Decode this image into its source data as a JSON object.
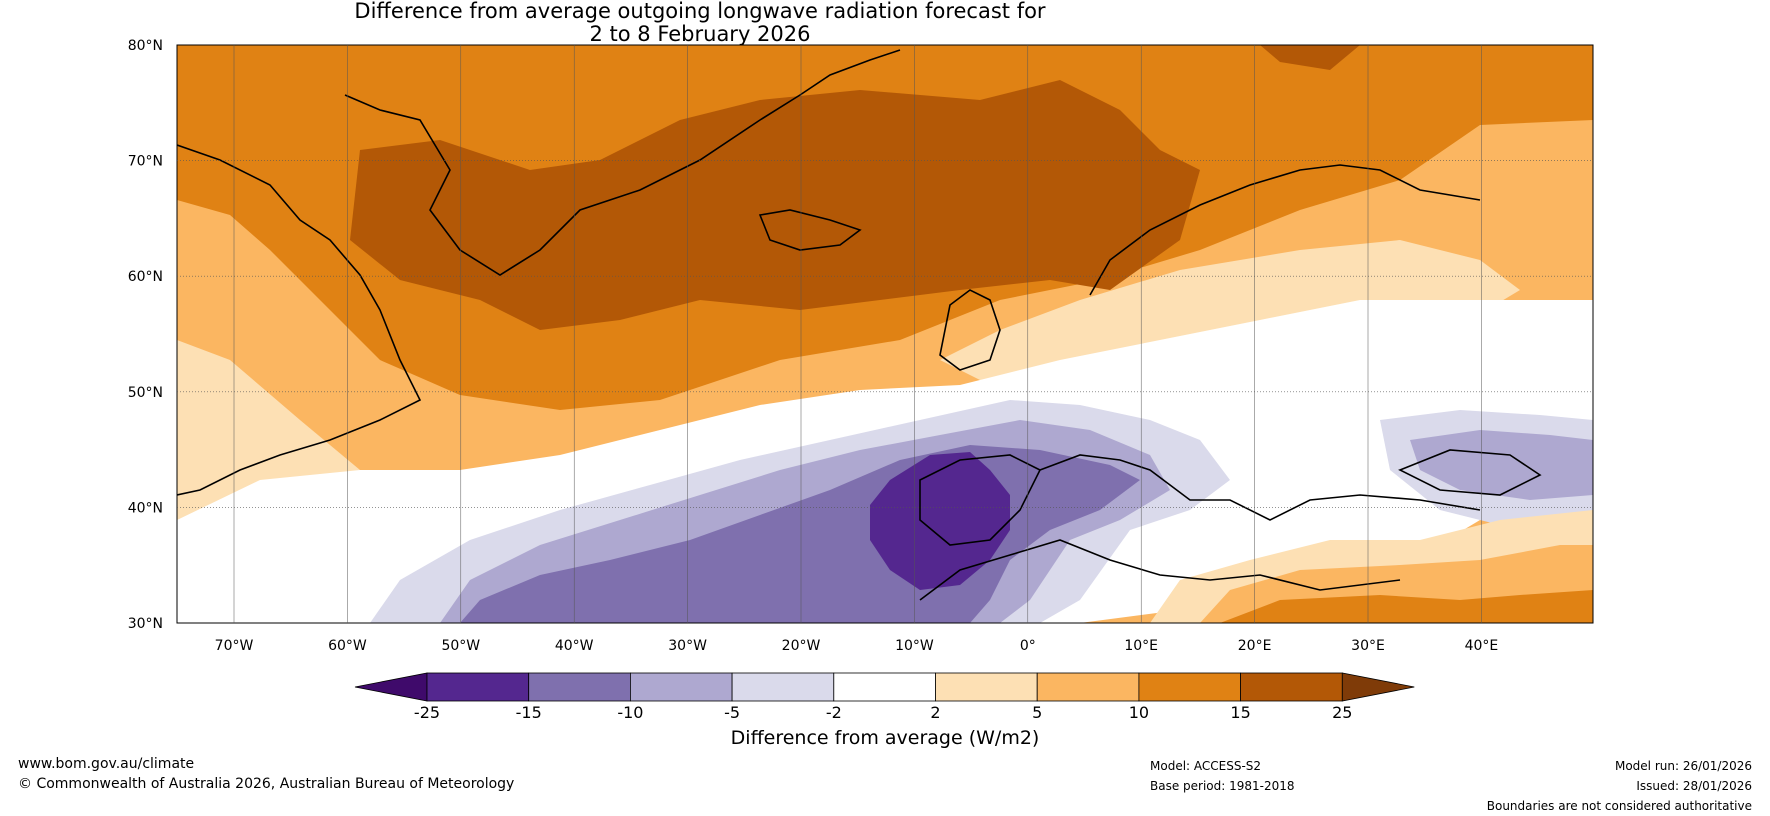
{
  "title": {
    "line1": "Difference from average outgoing longwave radiation forecast for",
    "line2": "2 to 8 February 2026"
  },
  "lat_labels": [
    "80°N",
    "70°N",
    "60°N",
    "50°N",
    "40°N",
    "30°N"
  ],
  "lon_labels": [
    "70°W",
    "60°W",
    "50°W",
    "40°W",
    "30°W",
    "20°W",
    "10°W",
    "0°",
    "10°E",
    "20°E",
    "30°E",
    "40°E"
  ],
  "colorbar": {
    "ticks": [
      "-25",
      "-15",
      "-10",
      "-5",
      "-2",
      "2",
      "5",
      "10",
      "15",
      "25"
    ],
    "colors": [
      "#3f0a6b",
      "#54278f",
      "#7f70ae",
      "#aea8d0",
      "#dadaeb",
      "#ffffff",
      "#fde0b4",
      "#fbb661",
      "#e08214",
      "#b35806",
      "#7f3b08"
    ],
    "label": "Difference from average (W/m2)"
  },
  "footer": {
    "url": "www.bom.gov.au/climate",
    "copyright": "© Commonwealth of Australia 2026, Australian Bureau of Meteorology",
    "model": "Model: ACCESS-S2",
    "base_period": "Base period: 1981-2018",
    "model_run": "Model run: 26/01/2026",
    "issued": "Issued: 28/01/2026",
    "disclaimer": "Boundaries are not considered authoritative"
  }
}
